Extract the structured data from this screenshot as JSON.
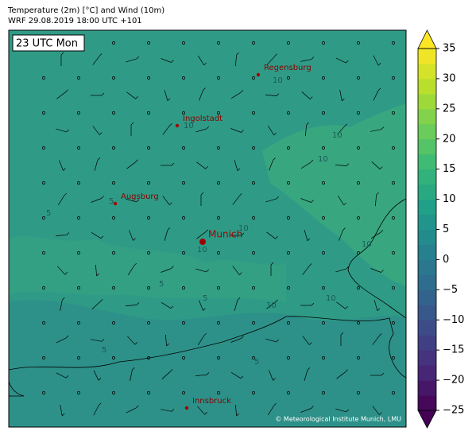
{
  "header": {
    "title": "Temperature (2m) [°C] and Wind (10m)",
    "subtitle": "WRF 29.08.2019 18:00 UTC +101"
  },
  "time_label": "23 UTC Mon",
  "cities": [
    {
      "name": "Regensburg"
    },
    {
      "name": "Ingolstadt"
    },
    {
      "name": "Augsburg"
    },
    {
      "name": "Munich"
    },
    {
      "name": "Innsbruck"
    }
  ],
  "contour_labels": [
    "10",
    "10",
    "10",
    "10",
    "5",
    "5",
    "10",
    "10",
    "10",
    "5",
    "10",
    "5",
    "10",
    "5",
    "5"
  ],
  "colorbar": {
    "lim": [
      -25,
      35
    ],
    "ticks": [
      35,
      30,
      25,
      20,
      15,
      10,
      5,
      0,
      {
        "value": -5,
        "label": "−5"
      },
      {
        "value": -10,
        "label": "−10"
      },
      {
        "value": -15,
        "label": "−15"
      },
      {
        "value": -20,
        "label": "−20"
      },
      {
        "value": -25,
        "label": "−25"
      }
    ]
  },
  "copyright": "© Meteorological Institute Munich, LMU"
}
